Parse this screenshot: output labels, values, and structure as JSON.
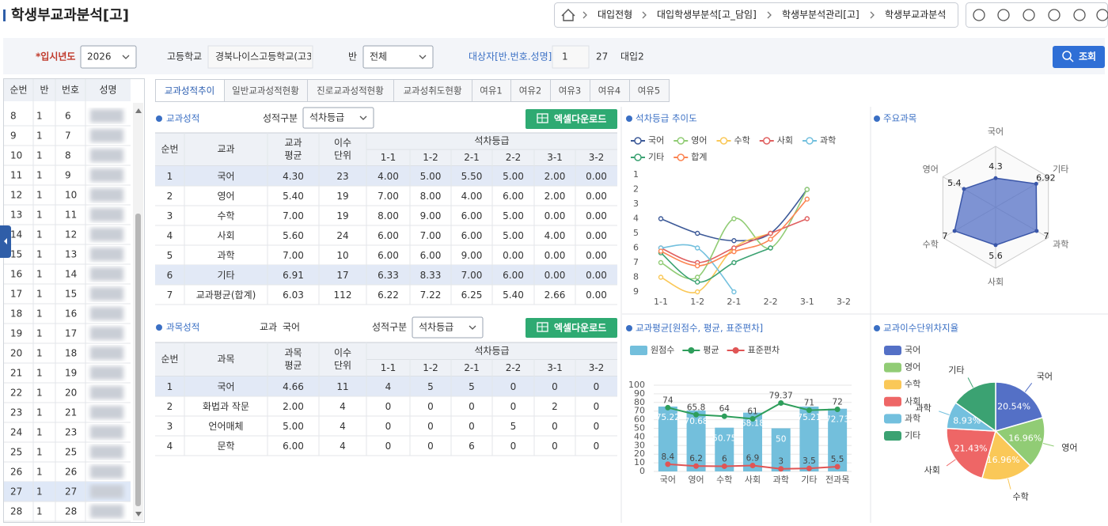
{
  "header": {
    "title": "학생부교과분석[고]",
    "breadcrumb": [
      "대입전형",
      "대입학생부분석[고_담임]",
      "학생부분석관리[고]",
      "학생부교과분석"
    ]
  },
  "filters": {
    "year_label": "*입시년도",
    "year": "2026",
    "school_label": "고등학교",
    "school": "경북나이스고등학교(고3",
    "class_label": "반",
    "class": "전체",
    "target_label": "대상자[반.번호.성명]",
    "target_class": "1",
    "target_number": "27",
    "target_name": "대입2",
    "search_button": "조회"
  },
  "student_list": {
    "headers": [
      "순번",
      "반",
      "번호",
      "성명"
    ],
    "rows": [
      [
        "8",
        "1",
        "6"
      ],
      [
        "9",
        "1",
        "7"
      ],
      [
        "10",
        "1",
        "8"
      ],
      [
        "11",
        "1",
        "9"
      ],
      [
        "12",
        "1",
        "10"
      ],
      [
        "13",
        "1",
        "11"
      ],
      [
        "14",
        "1",
        "12"
      ],
      [
        "15",
        "1",
        "13"
      ],
      [
        "16",
        "1",
        "14"
      ],
      [
        "17",
        "1",
        "15"
      ],
      [
        "18",
        "1",
        "16"
      ],
      [
        "19",
        "1",
        "17"
      ],
      [
        "20",
        "1",
        "18"
      ],
      [
        "21",
        "1",
        "19"
      ],
      [
        "22",
        "1",
        "20"
      ],
      [
        "23",
        "1",
        "21"
      ],
      [
        "24",
        "1",
        "23"
      ],
      [
        "25",
        "1",
        "25"
      ],
      [
        "26",
        "1",
        "26"
      ],
      [
        "27",
        "1",
        "27"
      ],
      [
        "28",
        "1",
        "28"
      ]
    ]
  },
  "tabs": [
    "교과성적추이",
    "일반교과성적현황",
    "진로교과성적현황",
    "교과성취도현황",
    "여유1",
    "여유2",
    "여유3",
    "여유4",
    "여유5"
  ],
  "subject_grades": {
    "title": "교과성적",
    "filter_label": "성적구분",
    "filter": "석차등급",
    "excel_button": "엑셀다운로드",
    "headers": [
      [
        "순번"
      ],
      [
        "교과"
      ],
      [
        "교과",
        "평균"
      ],
      [
        "이수",
        "단위"
      ]
    ],
    "group_header": "석차등급",
    "terms": [
      "1-1",
      "1-2",
      "2-1",
      "2-2",
      "3-1",
      "3-2"
    ],
    "rows": [
      [
        "1",
        "국어",
        "4.30",
        "23",
        "4.00",
        "5.00",
        "5.50",
        "5.00",
        "2.00",
        "0.00"
      ],
      [
        "2",
        "영어",
        "5.40",
        "19",
        "7.00",
        "8.00",
        "4.00",
        "6.00",
        "2.00",
        "0.00"
      ],
      [
        "3",
        "수학",
        "7.00",
        "19",
        "8.00",
        "9.00",
        "6.00",
        "5.00",
        "0.00",
        "0.00"
      ],
      [
        "4",
        "사회",
        "5.60",
        "24",
        "6.00",
        "7.00",
        "6.00",
        "5.00",
        "4.00",
        "0.00"
      ],
      [
        "5",
        "과학",
        "7.00",
        "10",
        "6.00",
        "6.00",
        "9.00",
        "0.00",
        "0.00",
        "0.00"
      ],
      [
        "6",
        "기타",
        "6.91",
        "17",
        "6.33",
        "8.33",
        "7.00",
        "6.00",
        "0.00",
        "0.00"
      ],
      [
        "7",
        "교과평균(합계)",
        "6.03",
        "112",
        "6.22",
        "7.22",
        "6.25",
        "5.40",
        "2.66",
        "0.00"
      ]
    ]
  },
  "course_grades": {
    "title": "과목성적",
    "subject_label": "교과",
    "subject": "국어",
    "filter_label": "성적구분",
    "filter": "석차등급",
    "excel_button": "엑셀다운로드",
    "headers": [
      [
        "순번"
      ],
      [
        "과목"
      ],
      [
        "과목",
        "평균"
      ],
      [
        "이수",
        "단위"
      ]
    ],
    "group_header": "석차등급",
    "terms": [
      "1-1",
      "1-2",
      "2-1",
      "2-2",
      "3-1",
      "3-2"
    ],
    "rows": [
      [
        "1",
        "국어",
        "4.66",
        "11",
        "4",
        "5",
        "5",
        "0",
        "0",
        "0"
      ],
      [
        "2",
        "화법과 작문",
        "2.00",
        "4",
        "0",
        "0",
        "0",
        "0",
        "2",
        "0"
      ],
      [
        "3",
        "언어매체",
        "5.00",
        "4",
        "0",
        "0",
        "0",
        "5",
        "0",
        "0"
      ],
      [
        "4",
        "문학",
        "6.00",
        "4",
        "0",
        "0",
        "6",
        "0",
        "0",
        "0"
      ]
    ]
  },
  "chart_data": [
    {
      "type": "line",
      "title": "석차등급 추이도",
      "categories": [
        "1-1",
        "1-2",
        "2-1",
        "2-2",
        "3-1",
        "3-2"
      ],
      "ylim": [
        9,
        1
      ],
      "yticks": [
        1,
        2,
        3,
        4,
        5,
        6,
        7,
        8,
        9
      ],
      "series": [
        {
          "name": "국어",
          "color": "#3d5a98",
          "values": [
            4,
            5,
            5.5,
            5,
            2,
            null
          ]
        },
        {
          "name": "영어",
          "color": "#91cc75",
          "values": [
            7,
            8,
            4,
            6,
            2,
            null
          ]
        },
        {
          "name": "수학",
          "color": "#fac858",
          "values": [
            8,
            9,
            6,
            5,
            null,
            null
          ]
        },
        {
          "name": "사회",
          "color": "#e06060",
          "values": [
            6,
            7,
            6,
            5,
            4,
            null
          ]
        },
        {
          "name": "과학",
          "color": "#73c0de",
          "values": [
            6,
            6,
            9,
            null,
            null,
            null
          ]
        },
        {
          "name": "기타",
          "color": "#3ba272",
          "values": [
            6.33,
            8.33,
            7,
            6,
            null,
            null
          ]
        },
        {
          "name": "합계",
          "color": "#fc8452",
          "values": [
            6.22,
            7.22,
            6.25,
            5.4,
            2.66,
            null
          ]
        }
      ]
    },
    {
      "type": "radar",
      "title": "주요과목",
      "categories": [
        "국어",
        "기타",
        "과학",
        "사회",
        "수학",
        "영어"
      ],
      "values": [
        4.3,
        6.92,
        7,
        5.6,
        7,
        5.4
      ],
      "color": "#5470c6",
      "rlim": [
        0,
        9
      ]
    },
    {
      "type": "bar",
      "title": "교과평균[원점수, 평균, 표준편차]",
      "categories": [
        "국어",
        "영어",
        "수학",
        "사회",
        "과학",
        "기타",
        "전과목"
      ],
      "ylim": [
        0,
        100
      ],
      "yticks": [
        0,
        10,
        20,
        30,
        40,
        50,
        60,
        70,
        80,
        90,
        100
      ],
      "grid": true,
      "series": [
        {
          "name": "원점수",
          "type": "bar",
          "color": "#73bfdc",
          "values": [
            75.22,
            70.68,
            50.75,
            68.18,
            50,
            75.21,
            72.73
          ]
        },
        {
          "name": "평균",
          "type": "line",
          "color": "#2e9e5b",
          "values": [
            74,
            65.8,
            64,
            61,
            79.37,
            71,
            72
          ]
        },
        {
          "name": "표준편차",
          "type": "line",
          "color": "#e05555",
          "values": [
            8.4,
            6.2,
            6,
            6.9,
            3,
            3.5,
            5.5
          ]
        }
      ]
    },
    {
      "type": "pie",
      "title": "교과이수단위차지율",
      "categories": [
        "국어",
        "영어",
        "수학",
        "사회",
        "과학",
        "기타"
      ],
      "values": [
        20.54,
        16.96,
        16.96,
        21.43,
        8.93,
        15.18
      ],
      "value_labels": [
        "20.54%",
        "16.96%",
        "16.96%",
        "21.43%",
        "8.93%",
        null
      ],
      "colors": [
        "#5470c6",
        "#91cc75",
        "#fac858",
        "#ee6666",
        "#73c0de",
        "#3ba272"
      ]
    }
  ]
}
